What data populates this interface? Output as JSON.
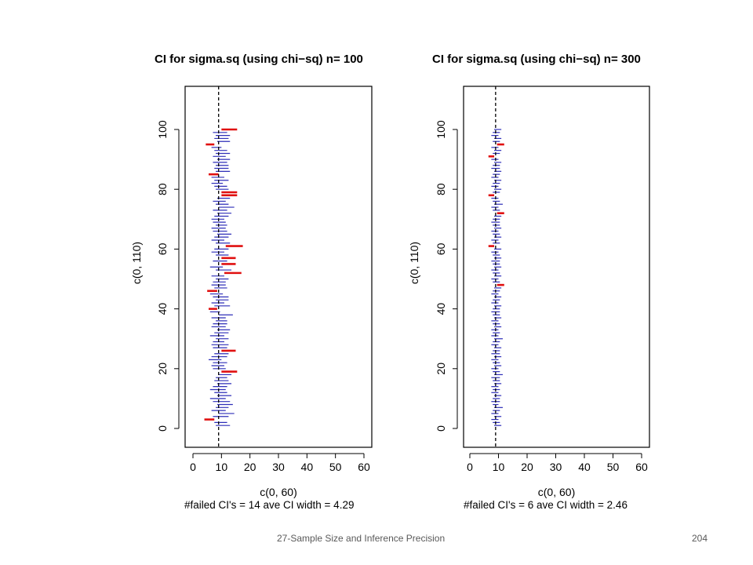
{
  "footer": {
    "caption": "27-Sample Size and Inference Precision",
    "page_number": "204"
  },
  "colors": {
    "covering_interval": "#2e2eb8",
    "failed_interval": "#e01010",
    "reference_line": "#000000",
    "axis": "#000000"
  },
  "chart_data": [
    {
      "type": "errorbar",
      "title": "CI for sigma.sq (using chi−sq) n=  100",
      "xlabel": "c(0, 60)",
      "subtitle": "#failed CI's = 14 ave CI width = 4.29",
      "ylabel": "c(0, 110)",
      "xlim": [
        0,
        60
      ],
      "ylim": [
        0,
        110
      ],
      "xticks": [
        "0",
        "10",
        "20",
        "30",
        "40",
        "50",
        "60"
      ],
      "yticks": [
        "0",
        "20",
        "40",
        "60",
        "80",
        "100"
      ],
      "reference_x": 9,
      "grid": false,
      "intervals": [
        [
          1,
          8.0,
          13.0,
          false
        ],
        [
          2,
          7.5,
          12.0,
          false
        ],
        [
          3,
          4.0,
          7.5,
          true
        ],
        [
          4,
          7.0,
          12.5,
          false
        ],
        [
          5,
          9.0,
          14.5,
          false
        ],
        [
          6,
          6.5,
          11.5,
          false
        ],
        [
          7,
          8.0,
          12.5,
          false
        ],
        [
          8,
          8.5,
          14.0,
          false
        ],
        [
          9,
          7.0,
          13.0,
          false
        ],
        [
          10,
          6.0,
          11.5,
          false
        ],
        [
          11,
          8.5,
          13.5,
          false
        ],
        [
          12,
          7.5,
          12.0,
          false
        ],
        [
          13,
          6.0,
          11.5,
          false
        ],
        [
          14,
          7.0,
          12.0,
          false
        ],
        [
          15,
          8.5,
          13.5,
          false
        ],
        [
          16,
          7.5,
          12.5,
          false
        ],
        [
          17,
          8.0,
          12.0,
          false
        ],
        [
          18,
          9.0,
          13.5,
          false
        ],
        [
          19,
          10.0,
          15.5,
          true
        ],
        [
          20,
          7.0,
          11.5,
          false
        ],
        [
          21,
          6.5,
          11.0,
          false
        ],
        [
          22,
          7.0,
          12.0,
          false
        ],
        [
          23,
          5.5,
          10.0,
          false
        ],
        [
          24,
          6.5,
          12.0,
          false
        ],
        [
          25,
          7.5,
          12.5,
          false
        ],
        [
          26,
          10.0,
          15.0,
          true
        ],
        [
          27,
          7.0,
          12.0,
          false
        ],
        [
          28,
          6.5,
          12.5,
          false
        ],
        [
          29,
          7.0,
          11.0,
          false
        ],
        [
          30,
          8.0,
          12.5,
          false
        ],
        [
          31,
          6.0,
          11.0,
          false
        ],
        [
          32,
          7.5,
          12.5,
          false
        ],
        [
          33,
          8.5,
          13.0,
          false
        ],
        [
          34,
          6.5,
          11.5,
          false
        ],
        [
          35,
          7.0,
          12.0,
          false
        ],
        [
          36,
          8.0,
          12.0,
          false
        ],
        [
          37,
          6.5,
          11.5,
          false
        ],
        [
          38,
          9.0,
          14.0,
          false
        ],
        [
          39,
          6.0,
          9.5,
          false
        ],
        [
          40,
          5.5,
          8.5,
          true
        ],
        [
          41,
          7.5,
          13.0,
          false
        ],
        [
          42,
          6.5,
          11.0,
          false
        ],
        [
          43,
          8.0,
          12.5,
          false
        ],
        [
          44,
          7.0,
          12.5,
          false
        ],
        [
          45,
          6.0,
          10.5,
          false
        ],
        [
          46,
          5.0,
          8.5,
          true
        ],
        [
          47,
          7.5,
          12.0,
          false
        ],
        [
          48,
          6.5,
          11.5,
          false
        ],
        [
          49,
          7.0,
          11.5,
          false
        ],
        [
          50,
          8.0,
          12.5,
          false
        ],
        [
          51,
          6.5,
          11.0,
          false
        ],
        [
          52,
          11.0,
          17.0,
          true
        ],
        [
          53,
          8.0,
          13.5,
          false
        ],
        [
          54,
          6.0,
          10.5,
          false
        ],
        [
          55,
          10.0,
          15.0,
          true
        ],
        [
          56,
          7.0,
          12.0,
          false
        ],
        [
          57,
          10.0,
          15.0,
          true
        ],
        [
          58,
          8.0,
          12.5,
          false
        ],
        [
          59,
          6.5,
          11.0,
          false
        ],
        [
          60,
          7.5,
          12.5,
          false
        ],
        [
          61,
          11.5,
          17.5,
          true
        ],
        [
          62,
          8.0,
          13.0,
          false
        ],
        [
          63,
          6.5,
          11.0,
          false
        ],
        [
          64,
          7.5,
          12.5,
          false
        ],
        [
          65,
          8.5,
          13.5,
          false
        ],
        [
          66,
          7.0,
          12.0,
          false
        ],
        [
          67,
          6.5,
          11.5,
          false
        ],
        [
          68,
          8.0,
          12.0,
          false
        ],
        [
          69,
          7.0,
          11.5,
          false
        ],
        [
          70,
          6.5,
          11.0,
          false
        ],
        [
          71,
          7.5,
          12.5,
          false
        ],
        [
          72,
          8.5,
          13.5,
          false
        ],
        [
          73,
          7.0,
          12.0,
          false
        ],
        [
          74,
          9.0,
          14.5,
          false
        ],
        [
          75,
          8.0,
          12.5,
          false
        ],
        [
          76,
          7.0,
          11.5,
          false
        ],
        [
          77,
          8.5,
          13.0,
          false
        ],
        [
          78,
          10.0,
          15.5,
          true
        ],
        [
          79,
          10.0,
          15.5,
          true
        ],
        [
          80,
          8.0,
          12.5,
          false
        ],
        [
          81,
          7.5,
          12.0,
          false
        ],
        [
          82,
          6.5,
          10.5,
          false
        ],
        [
          83,
          7.5,
          12.5,
          false
        ],
        [
          84,
          6.5,
          11.0,
          false
        ],
        [
          85,
          5.5,
          9.0,
          true
        ],
        [
          86,
          8.0,
          13.0,
          false
        ],
        [
          87,
          7.5,
          12.5,
          false
        ],
        [
          88,
          8.0,
          12.5,
          false
        ],
        [
          89,
          7.0,
          12.0,
          false
        ],
        [
          90,
          8.5,
          13.0,
          false
        ],
        [
          91,
          7.0,
          11.5,
          false
        ],
        [
          92,
          8.0,
          13.0,
          false
        ],
        [
          93,
          7.5,
          12.0,
          false
        ],
        [
          94,
          6.5,
          10.0,
          false
        ],
        [
          95,
          4.5,
          7.5,
          true
        ],
        [
          96,
          8.5,
          13.0,
          false
        ],
        [
          97,
          7.5,
          12.5,
          false
        ],
        [
          98,
          8.0,
          13.0,
          false
        ],
        [
          99,
          7.0,
          12.0,
          false
        ],
        [
          100,
          10.0,
          15.5,
          true
        ]
      ]
    },
    {
      "type": "errorbar",
      "title": "CI for sigma.sq (using chi−sq) n=  300",
      "xlabel": "c(0, 60)",
      "subtitle": "#failed CI's = 6 ave CI width = 2.46",
      "ylabel": "c(0, 110)",
      "xlim": [
        0,
        60
      ],
      "ylim": [
        0,
        110
      ],
      "xticks": [
        "0",
        "10",
        "20",
        "30",
        "40",
        "50",
        "60"
      ],
      "yticks": [
        "0",
        "20",
        "40",
        "60",
        "80",
        "100"
      ],
      "reference_x": 9,
      "grid": false,
      "intervals": [
        [
          1,
          8.5,
          11.0,
          false
        ],
        [
          2,
          8.0,
          10.5,
          false
        ],
        [
          3,
          7.5,
          10.0,
          false
        ],
        [
          4,
          8.5,
          11.0,
          false
        ],
        [
          5,
          7.5,
          10.0,
          false
        ],
        [
          6,
          8.0,
          10.5,
          false
        ],
        [
          7,
          8.5,
          11.5,
          false
        ],
        [
          8,
          8.0,
          10.0,
          false
        ],
        [
          9,
          7.5,
          10.5,
          false
        ],
        [
          10,
          8.0,
          10.5,
          false
        ],
        [
          11,
          8.5,
          11.0,
          false
        ],
        [
          12,
          7.5,
          10.0,
          false
        ],
        [
          13,
          8.0,
          10.5,
          false
        ],
        [
          14,
          7.5,
          10.0,
          false
        ],
        [
          15,
          8.5,
          11.0,
          false
        ],
        [
          16,
          8.0,
          10.5,
          false
        ],
        [
          17,
          7.5,
          10.5,
          false
        ],
        [
          18,
          8.5,
          11.5,
          false
        ],
        [
          19,
          8.0,
          10.5,
          false
        ],
        [
          20,
          7.5,
          10.0,
          false
        ],
        [
          21,
          8.5,
          11.0,
          false
        ],
        [
          22,
          8.0,
          10.5,
          false
        ],
        [
          23,
          7.5,
          10.0,
          false
        ],
        [
          24,
          8.5,
          11.0,
          false
        ],
        [
          25,
          7.5,
          10.5,
          false
        ],
        [
          26,
          8.0,
          10.5,
          false
        ],
        [
          27,
          8.5,
          11.0,
          false
        ],
        [
          28,
          7.5,
          10.0,
          false
        ],
        [
          29,
          8.0,
          10.5,
          false
        ],
        [
          30,
          8.5,
          11.5,
          false
        ],
        [
          31,
          7.5,
          10.0,
          false
        ],
        [
          32,
          8.0,
          10.5,
          false
        ],
        [
          33,
          7.5,
          10.0,
          false
        ],
        [
          34,
          8.5,
          11.0,
          false
        ],
        [
          35,
          8.0,
          10.5,
          false
        ],
        [
          36,
          7.5,
          10.0,
          false
        ],
        [
          37,
          8.5,
          11.0,
          false
        ],
        [
          38,
          8.0,
          10.5,
          false
        ],
        [
          39,
          7.5,
          10.5,
          false
        ],
        [
          40,
          8.0,
          10.5,
          false
        ],
        [
          41,
          8.5,
          11.0,
          false
        ],
        [
          42,
          7.5,
          10.0,
          false
        ],
        [
          43,
          8.0,
          10.5,
          false
        ],
        [
          44,
          8.5,
          11.0,
          false
        ],
        [
          45,
          7.5,
          10.0,
          false
        ],
        [
          46,
          8.0,
          10.5,
          false
        ],
        [
          47,
          8.5,
          11.0,
          false
        ],
        [
          48,
          9.5,
          12.0,
          true
        ],
        [
          49,
          8.0,
          10.5,
          false
        ],
        [
          50,
          7.5,
          10.0,
          false
        ],
        [
          51,
          8.5,
          11.0,
          false
        ],
        [
          52,
          8.0,
          10.5,
          false
        ],
        [
          53,
          7.5,
          10.0,
          false
        ],
        [
          54,
          8.5,
          11.0,
          false
        ],
        [
          55,
          8.0,
          10.5,
          false
        ],
        [
          56,
          7.5,
          10.5,
          false
        ],
        [
          57,
          8.5,
          11.0,
          false
        ],
        [
          58,
          8.0,
          10.5,
          false
        ],
        [
          59,
          7.5,
          10.0,
          false
        ],
        [
          60,
          8.5,
          11.0,
          false
        ],
        [
          61,
          6.5,
          8.5,
          true
        ],
        [
          62,
          8.0,
          10.5,
          false
        ],
        [
          63,
          7.5,
          10.0,
          false
        ],
        [
          64,
          8.5,
          11.0,
          false
        ],
        [
          65,
          8.0,
          10.5,
          false
        ],
        [
          66,
          7.5,
          10.0,
          false
        ],
        [
          67,
          8.5,
          11.0,
          false
        ],
        [
          68,
          8.0,
          10.5,
          false
        ],
        [
          69,
          7.5,
          10.5,
          false
        ],
        [
          70,
          8.0,
          10.5,
          false
        ],
        [
          71,
          8.5,
          11.0,
          false
        ],
        [
          72,
          9.5,
          12.0,
          true
        ],
        [
          73,
          8.0,
          10.5,
          false
        ],
        [
          74,
          7.5,
          10.0,
          false
        ],
        [
          75,
          8.5,
          11.5,
          false
        ],
        [
          76,
          8.0,
          10.5,
          false
        ],
        [
          77,
          7.5,
          10.0,
          false
        ],
        [
          78,
          6.5,
          8.5,
          true
        ],
        [
          79,
          8.0,
          10.5,
          false
        ],
        [
          80,
          8.5,
          11.0,
          false
        ],
        [
          81,
          7.5,
          10.0,
          false
        ],
        [
          82,
          8.0,
          10.5,
          false
        ],
        [
          83,
          8.5,
          11.0,
          false
        ],
        [
          84,
          7.5,
          10.0,
          false
        ],
        [
          85,
          8.0,
          10.5,
          false
        ],
        [
          86,
          8.5,
          11.0,
          false
        ],
        [
          87,
          7.5,
          10.5,
          false
        ],
        [
          88,
          8.0,
          10.5,
          false
        ],
        [
          89,
          8.5,
          11.0,
          false
        ],
        [
          90,
          7.5,
          10.0,
          false
        ],
        [
          91,
          6.5,
          8.5,
          true
        ],
        [
          92,
          8.0,
          10.5,
          false
        ],
        [
          93,
          8.5,
          11.0,
          false
        ],
        [
          94,
          7.5,
          10.0,
          false
        ],
        [
          95,
          9.5,
          12.0,
          true
        ],
        [
          96,
          8.0,
          10.5,
          false
        ],
        [
          97,
          8.5,
          11.0,
          false
        ],
        [
          98,
          7.5,
          10.0,
          false
        ],
        [
          99,
          8.0,
          10.5,
          false
        ],
        [
          100,
          8.5,
          11.0,
          false
        ]
      ]
    }
  ]
}
